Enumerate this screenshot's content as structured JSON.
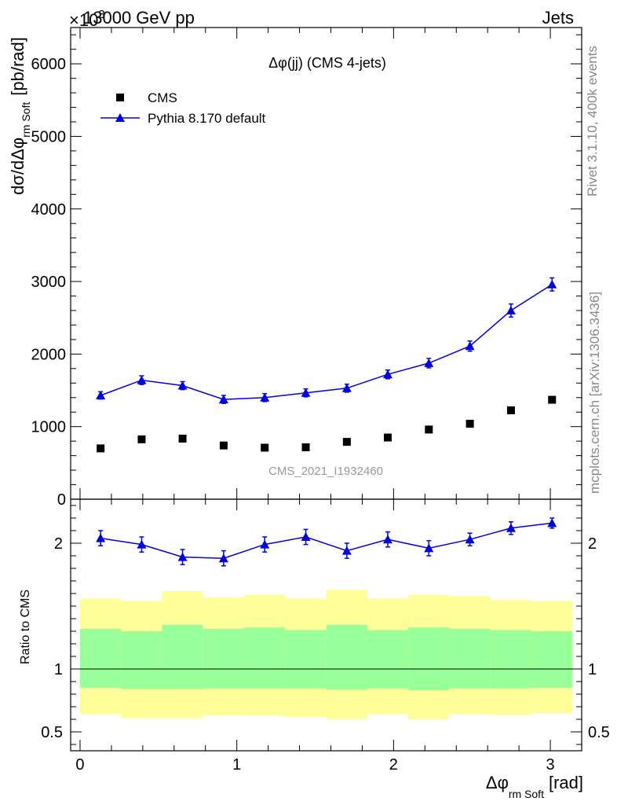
{
  "header": {
    "left": "13000 GeV pp",
    "right": "Jets",
    "exponent": "×10",
    "exponent_power": "3"
  },
  "side_labels": {
    "rivet": "Rivet 3.1.10,  400k events",
    "mcplots": "mcplots.cern.ch [arXiv:1306.3436]"
  },
  "watermark": "CMS_2021_I1932460",
  "colors": {
    "pythia": "#0000dd",
    "cms": "#000000",
    "band_outer": "#ffff99",
    "band_inner": "#99ff99"
  },
  "chart_data": [
    {
      "type": "scatter",
      "title": "Δφ(jj) (CMS 4-jets)",
      "ylabel": "dσ/dΔφ",
      "ylabel_sub": "rm Soft",
      "ylabel_unit": "[pb/rad]",
      "ylim": [
        0,
        6500
      ],
      "yscale_note": "×10³",
      "xlim": [
        -0.06,
        3.2
      ],
      "yticks": [
        0,
        1000,
        2000,
        3000,
        4000,
        5000,
        6000
      ],
      "legend": {
        "position": "top-left",
        "entries": [
          "CMS",
          "Pythia 8.170 default"
        ]
      },
      "x": [
        0.131,
        0.393,
        0.654,
        0.916,
        1.178,
        1.44,
        1.702,
        1.963,
        2.225,
        2.487,
        2.749,
        3.011
      ],
      "series": [
        {
          "name": "CMS",
          "marker": "square",
          "values": [
            700,
            825,
            835,
            740,
            710,
            715,
            790,
            850,
            960,
            1040,
            1225,
            1370
          ]
        },
        {
          "name": "Pythia 8.170 default",
          "marker": "triangle",
          "values": [
            1430,
            1640,
            1565,
            1375,
            1400,
            1465,
            1530,
            1720,
            1875,
            2110,
            2600,
            2960
          ],
          "errors": [
            50,
            60,
            55,
            55,
            55,
            55,
            55,
            60,
            65,
            70,
            90,
            90
          ]
        }
      ]
    },
    {
      "type": "line",
      "ylabel": "Ratio to CMS",
      "xlabel": "Δφ",
      "xlabel_sub": "rm Soft",
      "xlabel_unit": "[rad]",
      "ylim": [
        0.35,
        2.35
      ],
      "xlim": [
        -0.06,
        3.2
      ],
      "xticks": [
        0,
        1,
        2,
        3
      ],
      "yticks": [
        0.5,
        1,
        2
      ],
      "bin_edges": [
        0,
        0.262,
        0.524,
        0.785,
        1.047,
        1.309,
        1.571,
        1.833,
        2.094,
        2.356,
        2.618,
        2.88,
        3.142
      ],
      "band_inner": {
        "lo": [
          0.85,
          0.84,
          0.84,
          0.845,
          0.845,
          0.845,
          0.835,
          0.845,
          0.83,
          0.845,
          0.845,
          0.85
        ],
        "hi": [
          1.32,
          1.3,
          1.35,
          1.32,
          1.33,
          1.31,
          1.35,
          1.31,
          1.33,
          1.32,
          1.31,
          1.3
        ]
      },
      "band_outer": {
        "lo": [
          0.64,
          0.61,
          0.61,
          0.63,
          0.63,
          0.62,
          0.6,
          0.64,
          0.6,
          0.64,
          0.635,
          0.65
        ],
        "hi": [
          1.56,
          1.54,
          1.62,
          1.57,
          1.59,
          1.56,
          1.63,
          1.56,
          1.59,
          1.58,
          1.55,
          1.54
        ]
      },
      "x": [
        0.131,
        0.393,
        0.654,
        0.916,
        1.178,
        1.44,
        1.702,
        1.963,
        2.225,
        2.487,
        2.749,
        3.011
      ],
      "series": [
        {
          "name": "Pythia 8.170 default",
          "values": [
            2.04,
            1.99,
            1.89,
            1.88,
            1.99,
            2.05,
            1.94,
            2.03,
            1.96,
            2.03,
            2.12,
            2.16
          ],
          "errors": [
            0.06,
            0.06,
            0.06,
            0.06,
            0.06,
            0.06,
            0.06,
            0.06,
            0.06,
            0.05,
            0.05,
            0.04
          ]
        }
      ]
    }
  ]
}
